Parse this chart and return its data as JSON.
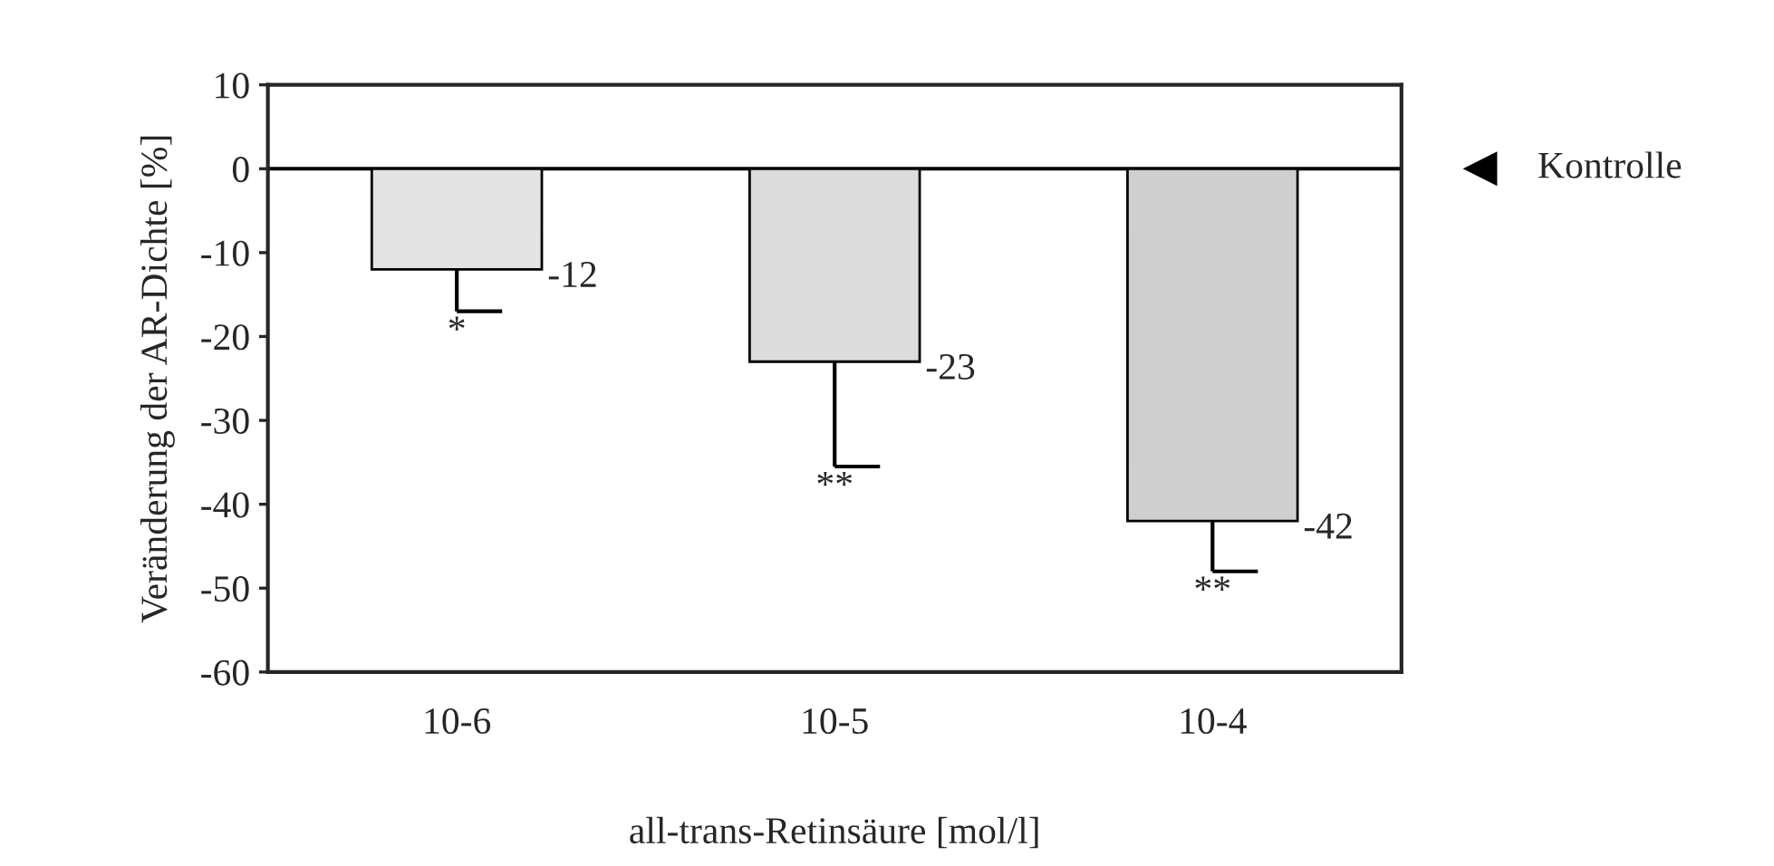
{
  "chart_data": {
    "type": "bar",
    "xlabel": "all-trans-Retinsäure [mol/l]",
    "ylabel": "Veränderung der AR-Dichte [%]",
    "categories": [
      "10-6",
      "10-5",
      "10-4"
    ],
    "values": [
      -12,
      -23,
      -42
    ],
    "colors": [
      "#e4e4e4",
      "#dcdcdc",
      "#cfcfcf"
    ],
    "errors": [
      [
        -17,
        -12
      ],
      [
        -35.5,
        -23
      ],
      [
        -48,
        -42
      ]
    ],
    "data_labels": true,
    "ylim": [
      -60,
      10
    ],
    "yticks": [
      -60,
      -50,
      -40,
      -30,
      -20,
      -10,
      0,
      10
    ],
    "ref_lines": [
      {
        "axis": "y",
        "value": 0,
        "label": "Kontrolle"
      }
    ],
    "annotations": [
      "*",
      "**",
      "**"
    ],
    "grid": false,
    "legend": false
  }
}
